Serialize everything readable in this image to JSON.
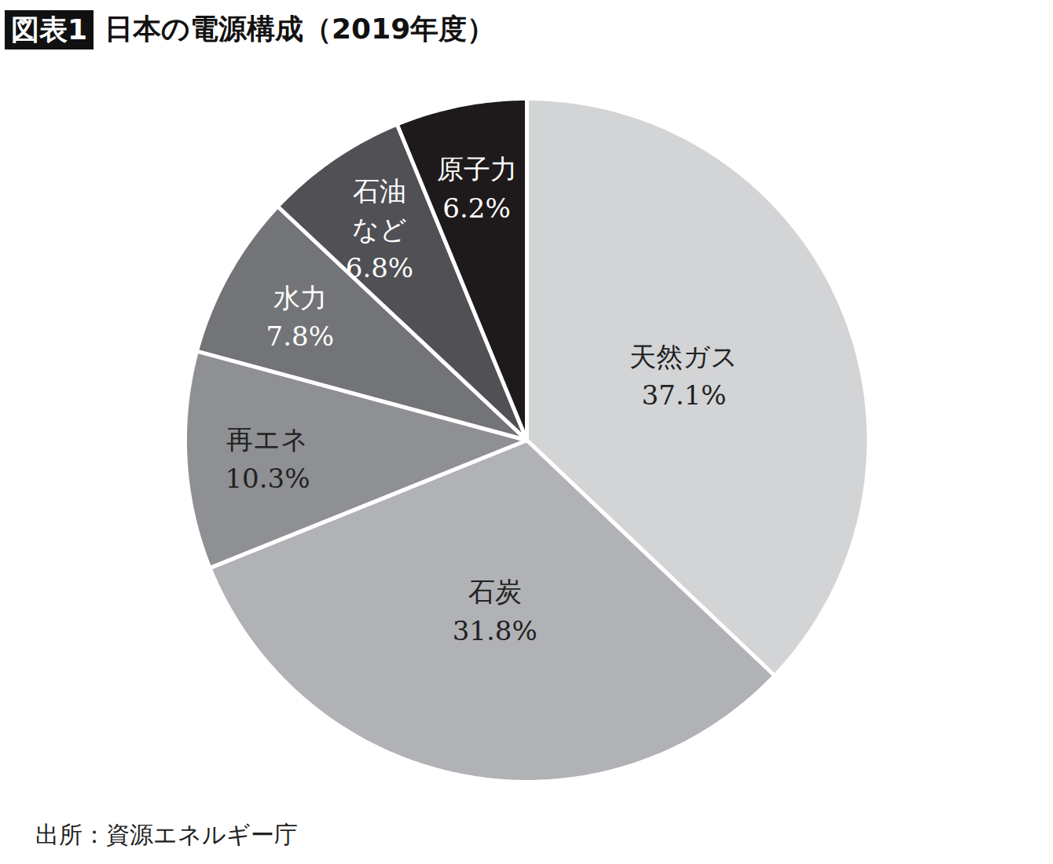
{
  "chart_data": {
    "type": "pie",
    "label": "図表1",
    "title": "日本の電源構成（2019年度）",
    "categories": [
      "天然ガス",
      "石炭",
      "再エネ",
      "水力",
      "石油\nなど",
      "原子力"
    ],
    "values": [
      37.1,
      31.8,
      10.3,
      7.8,
      6.8,
      6.2
    ],
    "value_labels": [
      "37.1%",
      "31.8%",
      "10.3%",
      "7.8%",
      "6.8%",
      "6.2%"
    ],
    "colors": [
      "#d3d4d6",
      "#b1b2b6",
      "#8f9094",
      "#737478",
      "#505055",
      "#1e1a1b"
    ],
    "data_labels": true,
    "caption": "出所：資源エネルギー庁"
  }
}
